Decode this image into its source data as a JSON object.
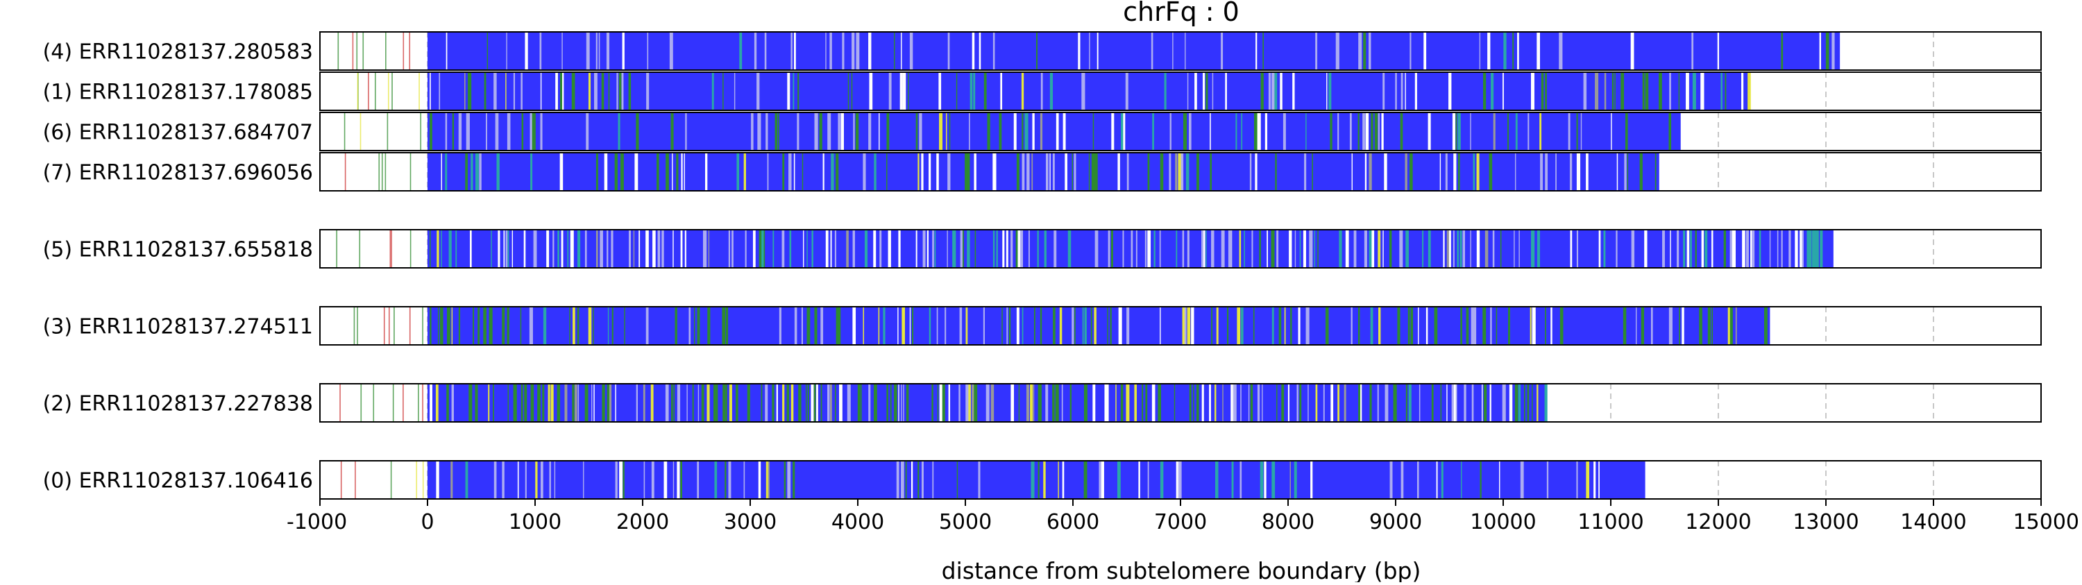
{
  "chart_data": {
    "type": "read-track",
    "title": "chrFq : 0",
    "xlabel": "distance from subtelomere boundary (bp)",
    "ylabel": "",
    "xlim": [
      -1000,
      15000
    ],
    "xticks": [
      -1000,
      0,
      1000,
      2000,
      3000,
      4000,
      5000,
      6000,
      7000,
      8000,
      9000,
      10000,
      11000,
      12000,
      13000,
      14000,
      15000
    ],
    "xtick_labels": [
      "-1000",
      "0",
      "1000",
      "2000",
      "3000",
      "4000",
      "5000",
      "6000",
      "7000",
      "8000",
      "9000",
      "10000",
      "11000",
      "12000",
      "13000",
      "14000",
      "15000"
    ],
    "grid": "vertical dashed at x ticks",
    "groups": [
      [
        {
          "label": "(4) ERR11028137.280583",
          "telomere_end": 13130,
          "texture": "dense-blue"
        },
        {
          "label": "(1) ERR11028137.178085",
          "telomere_end": 12300,
          "texture": "blue-green"
        },
        {
          "label": "(6) ERR11028137.684707",
          "telomere_end": 11650,
          "texture": "mostly-blue"
        },
        {
          "label": "(7) ERR11028137.696056",
          "telomere_end": 11450,
          "texture": "blue-green"
        }
      ],
      [
        {
          "label": "(5) ERR11028137.655818",
          "telomere_end": 13070,
          "texture": "mixed-cyan"
        }
      ],
      [
        {
          "label": "(3) ERR11028137.274511",
          "telomere_end": 12480,
          "texture": "green-yellow"
        }
      ],
      [
        {
          "label": "(2) ERR11028137.227838",
          "telomere_end": 10400,
          "texture": "green-yellow-heavy"
        }
      ],
      [
        {
          "label": "(0) ERR11028137.106416",
          "telomere_end": 11320,
          "texture": "mostly-blue"
        }
      ]
    ],
    "colors": {
      "telomere_repeat": "#3333ff",
      "variant_green": "#2e8b2e",
      "variant_yellow": "#e6e63c",
      "variant_cyan": "#2aa8a8",
      "variant_lavender": "#b9b9f0",
      "variant_gray": "#999999",
      "variant_red": "#cc3333",
      "gridline": "#c8c8c8",
      "frame": "#000000"
    }
  }
}
